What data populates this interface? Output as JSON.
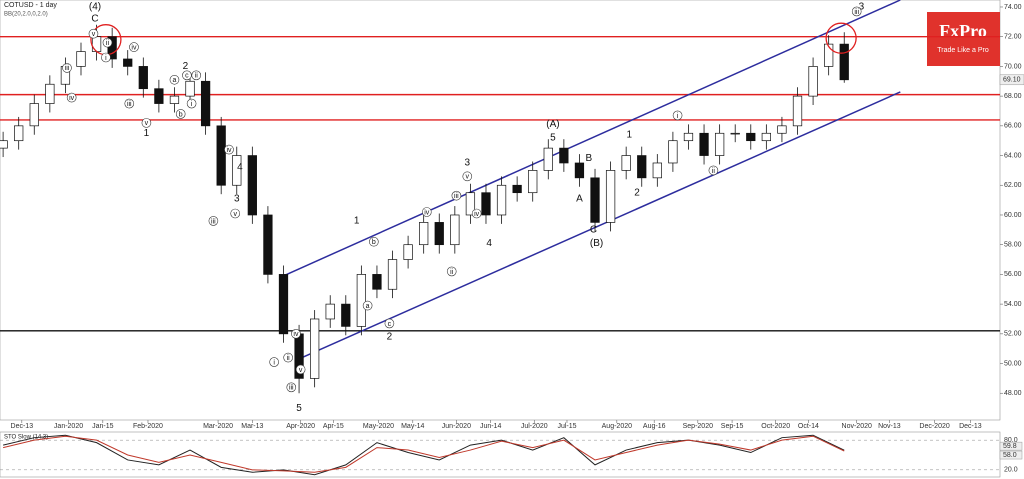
{
  "chart_data": [
    {
      "type": "candlestick",
      "title": "COTUSD - 1 day",
      "subtitle": "BB(20,2.0,0,2.0)",
      "logo": {
        "brand": "FxPro",
        "tagline": "Trade Like a Pro"
      },
      "categories": [
        null,
        null,
        null,
        null,
        null,
        null,
        null,
        null,
        null,
        null,
        null,
        null,
        null,
        null,
        null,
        null,
        null,
        null,
        null,
        null,
        null,
        null,
        null,
        null,
        null,
        null,
        null,
        null,
        null,
        null,
        null,
        null,
        null,
        null,
        null,
        null,
        null,
        null,
        null,
        null,
        null,
        null,
        null,
        null,
        null,
        null,
        null,
        null,
        null,
        null,
        null,
        null,
        null,
        null,
        null
      ],
      "open": [
        64.5,
        65,
        66,
        67.5,
        68.8,
        70,
        71,
        72,
        70.5,
        70,
        68.5,
        67.5,
        68,
        69,
        66,
        62,
        64,
        60,
        56,
        52,
        49,
        53,
        54,
        52.5,
        56,
        55,
        57,
        58,
        59.5,
        58,
        60,
        61.5,
        60,
        62,
        61.5,
        63,
        64.5,
        63.5,
        62.5,
        59.5,
        63,
        64,
        62.5,
        63.5,
        65,
        65.5,
        64,
        65.5,
        65.5,
        65,
        65.5,
        66,
        68,
        70,
        71.5
      ],
      "high": [
        65.6,
        66.6,
        68.1,
        69.4,
        70.6,
        71.6,
        72.8,
        72.6,
        71.1,
        70.6,
        69.1,
        68.6,
        69.6,
        69.6,
        66.6,
        64.6,
        64.6,
        60.6,
        56.6,
        52.6,
        53.6,
        54.6,
        54.6,
        56.6,
        56.6,
        57.6,
        58.6,
        60.1,
        60.1,
        60.6,
        62.1,
        62.1,
        62.6,
        62.6,
        63.6,
        65.1,
        65.1,
        64.1,
        63.1,
        63.6,
        64.6,
        64.6,
        64.1,
        65.6,
        66.1,
        66.1,
        66.1,
        66.1,
        66.1,
        66.1,
        66.6,
        68.6,
        70.6,
        72.1,
        72.3
      ],
      "low": [
        63.9,
        64.4,
        65.4,
        66.9,
        68.2,
        69.4,
        70.4,
        69.9,
        69.4,
        67.9,
        66.9,
        66.9,
        67.4,
        65.4,
        61.4,
        61.4,
        59.4,
        55.4,
        51.4,
        48,
        48.4,
        52.4,
        51.9,
        51.9,
        54.4,
        54.4,
        56.4,
        57.4,
        57.4,
        57.4,
        59.4,
        59.4,
        59.4,
        60.9,
        60.9,
        62.4,
        62.9,
        61.9,
        58.9,
        58.9,
        62.4,
        61.9,
        61.9,
        62.9,
        64.4,
        63.4,
        63.4,
        64.9,
        64.4,
        64.4,
        64.9,
        65.4,
        67.4,
        69.4,
        68.9
      ],
      "close": [
        65,
        66,
        67.5,
        68.8,
        70,
        71,
        72,
        70.5,
        70,
        68.5,
        67.5,
        68,
        69,
        66,
        62,
        64,
        60,
        56,
        52,
        49,
        53,
        54,
        52.5,
        56,
        55,
        57,
        58,
        59.5,
        58,
        60,
        61.5,
        60,
        62,
        61.5,
        63,
        64.5,
        63.5,
        62.5,
        59.5,
        63,
        64,
        62.5,
        63.5,
        65,
        65.5,
        64,
        65.5,
        65.5,
        65,
        65.5,
        66,
        68,
        70,
        71.5,
        69.1
      ],
      "up_color": "#ffffff",
      "down_color": "#111111",
      "last_price": {
        "value": 69.1,
        "label": "69.10"
      },
      "xlim": [
        -0.2,
        64
      ],
      "xticks": [
        {
          "value": 1.2,
          "label": "Dec-13"
        },
        {
          "value": 4.2,
          "label": "Jan-2020"
        },
        {
          "value": 6.4,
          "label": "Jan-15"
        },
        {
          "value": 9.3,
          "label": "Feb-2020"
        },
        {
          "value": 13.8,
          "label": "Mar-2020"
        },
        {
          "value": 16,
          "label": "Mar-13"
        },
        {
          "value": 19.1,
          "label": "Apr-2020"
        },
        {
          "value": 21.2,
          "label": "Apr-15"
        },
        {
          "value": 24.1,
          "label": "May-2020"
        },
        {
          "value": 26.3,
          "label": "May-14"
        },
        {
          "value": 29.1,
          "label": "Jun-2020"
        },
        {
          "value": 31.3,
          "label": "Jun-14"
        },
        {
          "value": 34.1,
          "label": "Jul-2020"
        },
        {
          "value": 36.2,
          "label": "Jul-15"
        },
        {
          "value": 39.4,
          "label": "Aug-2020"
        },
        {
          "value": 41.8,
          "label": "Aug-16"
        },
        {
          "value": 44.6,
          "label": "Sep-2020"
        },
        {
          "value": 46.8,
          "label": "Sep-15"
        },
        {
          "value": 49.6,
          "label": "Oct-2020"
        },
        {
          "value": 51.7,
          "label": "Oct-14"
        },
        {
          "value": 54.8,
          "label": "Nov-2020"
        },
        {
          "value": 56.9,
          "label": "Nov-13"
        },
        {
          "value": 59.8,
          "label": "Dec-2020"
        },
        {
          "value": 62.1,
          "label": "Dec-13"
        }
      ],
      "ylim": [
        46.2,
        74.47
      ],
      "yticks": [
        {
          "value": 48,
          "label": "48.00"
        },
        {
          "value": 50,
          "label": "50.00"
        },
        {
          "value": 52,
          "label": "52.00"
        },
        {
          "value": 54,
          "label": "54.00"
        },
        {
          "value": 56,
          "label": "56.00"
        },
        {
          "value": 58,
          "label": "58.00"
        },
        {
          "value": 60,
          "label": "60.00"
        },
        {
          "value": 62,
          "label": "62.00"
        },
        {
          "value": 64,
          "label": "64.00"
        },
        {
          "value": 66,
          "label": "66.00"
        },
        {
          "value": 68,
          "label": "68.00"
        },
        {
          "value": 70,
          "label": "70.00"
        },
        {
          "value": 72,
          "label": "72.00"
        },
        {
          "value": 74,
          "label": "74.00"
        }
      ],
      "hlines": [
        {
          "value": 72,
          "color": "#e02020"
        },
        {
          "value": 68.1,
          "color": "#e02020"
        },
        {
          "value": 66.4,
          "color": "#e02020"
        },
        {
          "value": 52.2,
          "color": "#111111"
        }
      ],
      "channel": {
        "color": "#2d2d9e",
        "lines": [
          {
            "x": [
              18.1,
              57.6
            ],
            "y": [
              55.95,
              74.47
            ]
          },
          {
            "x": [
              19.1,
              57.6
            ],
            "y": [
              50.36,
              68.28
            ]
          }
        ]
      },
      "highlight_circles": {
        "color": "#e02020",
        "x": [
          6.6,
          53.8
        ],
        "y": [
          71.8,
          71.9
        ]
      },
      "wave_labels": [
        {
          "text": "(4)",
          "x": 5.9,
          "y": 74.0
        },
        {
          "text": "C",
          "x": 5.9,
          "y": 73.2
        },
        {
          "text": "3",
          "x": 55.1,
          "y": 74.0
        },
        {
          "text": "1",
          "x": 9.2,
          "y": 65.5
        },
        {
          "text": "2",
          "x": 11.7,
          "y": 70.0
        },
        {
          "text": "4",
          "x": 15.2,
          "y": 63.2
        },
        {
          "text": "3",
          "x": 15.0,
          "y": 61.1
        },
        {
          "text": "5",
          "x": 19.0,
          "y": 47.0
        },
        {
          "text": "1",
          "x": 22.7,
          "y": 59.6
        },
        {
          "text": "2",
          "x": 24.8,
          "y": 51.8
        },
        {
          "text": "3",
          "x": 29.8,
          "y": 63.5
        },
        {
          "text": "4",
          "x": 31.2,
          "y": 58.1
        },
        {
          "text": "(A)",
          "x": 35.3,
          "y": 66.1
        },
        {
          "text": "5",
          "x": 35.3,
          "y": 65.2
        },
        {
          "text": "B",
          "x": 37.6,
          "y": 63.8
        },
        {
          "text": "A",
          "x": 37.0,
          "y": 61.1
        },
        {
          "text": "C",
          "x": 37.9,
          "y": 59.0
        },
        {
          "text": "(B)",
          "x": 38.1,
          "y": 58.1
        },
        {
          "text": "1",
          "x": 40.2,
          "y": 65.4
        },
        {
          "text": "2",
          "x": 40.7,
          "y": 61.5
        }
      ],
      "circled_labels": [
        {
          "text": "v",
          "x": 5.8,
          "y": 72.2
        },
        {
          "text": "ii",
          "x": 6.7,
          "y": 71.6
        },
        {
          "text": "i",
          "x": 6.6,
          "y": 70.6
        },
        {
          "text": "iii",
          "x": 4.1,
          "y": 69.9
        },
        {
          "text": "iv",
          "x": 4.4,
          "y": 67.9
        },
        {
          "text": "iv",
          "x": 8.4,
          "y": 71.3
        },
        {
          "text": "iii",
          "x": 8.1,
          "y": 67.5
        },
        {
          "text": "v",
          "x": 9.2,
          "y": 66.2
        },
        {
          "text": "a",
          "x": 11.0,
          "y": 69.1
        },
        {
          "text": "c",
          "x": 11.8,
          "y": 69.4
        },
        {
          "text": "ii",
          "x": 12.4,
          "y": 69.4
        },
        {
          "text": "i",
          "x": 12.1,
          "y": 67.5
        },
        {
          "text": "b",
          "x": 11.4,
          "y": 66.8
        },
        {
          "text": "iv",
          "x": 14.5,
          "y": 64.4
        },
        {
          "text": "v",
          "x": 14.9,
          "y": 60.1
        },
        {
          "text": "iii",
          "x": 13.5,
          "y": 59.6
        },
        {
          "text": "i",
          "x": 17.4,
          "y": 50.1
        },
        {
          "text": "ii",
          "x": 18.3,
          "y": 50.4
        },
        {
          "text": "iv",
          "x": 18.8,
          "y": 52.0
        },
        {
          "text": "iii",
          "x": 18.5,
          "y": 48.4
        },
        {
          "text": "v",
          "x": 19.1,
          "y": 49.6
        },
        {
          "text": "b",
          "x": 23.8,
          "y": 58.2
        },
        {
          "text": "a",
          "x": 23.4,
          "y": 53.9
        },
        {
          "text": "c",
          "x": 24.8,
          "y": 52.7
        },
        {
          "text": "iv",
          "x": 27.2,
          "y": 60.2
        },
        {
          "text": "iii",
          "x": 29.1,
          "y": 61.3
        },
        {
          "text": "v",
          "x": 29.8,
          "y": 62.6
        },
        {
          "text": "ii",
          "x": 28.8,
          "y": 56.2
        },
        {
          "text": "iv",
          "x": 30.4,
          "y": 60.1
        },
        {
          "text": "i",
          "x": 43.3,
          "y": 66.7
        },
        {
          "text": "ii",
          "x": 45.6,
          "y": 63.0
        },
        {
          "text": "iii",
          "x": 54.8,
          "y": 73.7
        }
      ]
    },
    {
      "type": "line",
      "title": "STO Slow (14,3)",
      "x": [
        0,
        2,
        4,
        6,
        8,
        10,
        12,
        14,
        16,
        18,
        20,
        22,
        24,
        26,
        28,
        30,
        32,
        34,
        36,
        38,
        40,
        42,
        44,
        46,
        48,
        50,
        52,
        54
      ],
      "series": [
        {
          "color": "#222222",
          "values": [
            70,
            85,
            90,
            75,
            40,
            30,
            60,
            25,
            15,
            20,
            10,
            30,
            75,
            55,
            40,
            70,
            80,
            60,
            85,
            30,
            60,
            75,
            80,
            70,
            55,
            85,
            90,
            59.8
          ]
        },
        {
          "color": "#c0392b",
          "values": [
            65,
            80,
            88,
            80,
            50,
            35,
            50,
            35,
            20,
            18,
            15,
            25,
            65,
            60,
            45,
            60,
            78,
            65,
            80,
            40,
            55,
            70,
            80,
            72,
            60,
            80,
            88,
            58
          ]
        }
      ],
      "last_values": [
        {
          "value": 59.8,
          "label": "59.8"
        },
        {
          "value": 58,
          "label": "58.0"
        }
      ],
      "xlim": [
        -0.2,
        64
      ],
      "ylim": [
        5.5,
        96.5
      ],
      "yticks": [
        {
          "value": 80,
          "label": "80.0"
        },
        {
          "value": 20,
          "label": "20.0"
        }
      ]
    }
  ]
}
